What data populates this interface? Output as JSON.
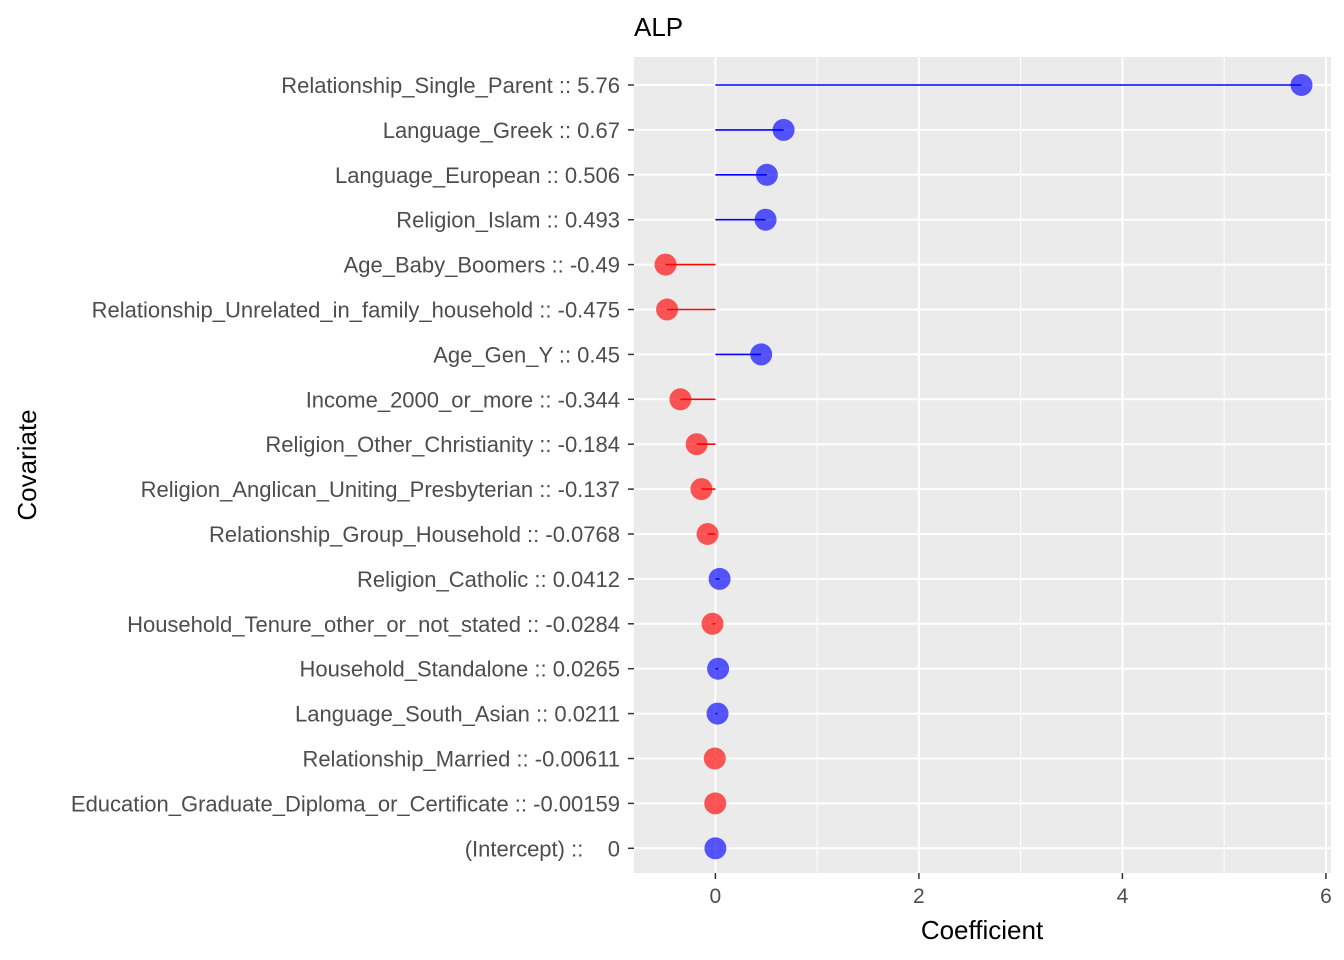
{
  "chart_data": {
    "type": "lollipop",
    "title": "ALP",
    "xlabel": "Coefficient",
    "ylabel": "Covariate",
    "xlim": [
      -0.8,
      6.05
    ],
    "x_ticks": [
      0,
      2,
      4,
      6
    ],
    "grid": true,
    "legend": "none",
    "colors": {
      "positive": "#0000ff",
      "negative": "#ff0000",
      "panel_background": "#ebebeb",
      "grid": "#ffffff"
    },
    "categories": [
      "Relationship_Single_Parent :: 5.76",
      "Language_Greek :: 0.67",
      "Language_European :: 0.506",
      "Religion_Islam :: 0.493",
      "Age_Baby_Boomers :: -0.49",
      "Relationship_Unrelated_in_family_household :: -0.475",
      "Age_Gen_Y :: 0.45",
      "Income_2000_or_more :: -0.344",
      "Religion_Other_Christianity :: -0.184",
      "Religion_Anglican_Uniting_Presbyterian :: -0.137",
      "Relationship_Group_Household :: -0.0768",
      "Religion_Catholic :: 0.0412",
      "Household_Tenure_other_or_not_stated :: -0.0284",
      "Household_Standalone :: 0.0265",
      "Language_South_Asian :: 0.0211",
      "Relationship_Married :: -0.00611",
      "Education_Graduate_Diploma_or_Certificate :: -0.00159",
      "(Intercept) ::    0"
    ],
    "values": [
      5.76,
      0.67,
      0.506,
      0.493,
      -0.49,
      -0.475,
      0.45,
      -0.344,
      -0.184,
      -0.137,
      -0.0768,
      0.0412,
      -0.0284,
      0.0265,
      0.0211,
      -0.00611,
      -0.00159,
      0
    ]
  }
}
